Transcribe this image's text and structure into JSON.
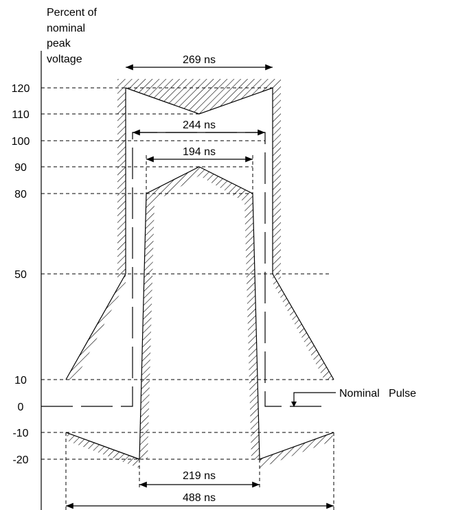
{
  "y_axis_title": [
    "Percent of",
    "nominal",
    "peak",
    "voltage"
  ],
  "y_ticks": [
    "120",
    "110",
    "100",
    "90",
    "80",
    "50",
    "10",
    "0",
    "-10",
    "-20"
  ],
  "dimensions": {
    "d269": "269 ns",
    "d244": "244 ns",
    "d194": "194 ns",
    "d219": "219 ns",
    "d488": "488 ns"
  },
  "nominal_label": "Nominal   Pulse"
}
